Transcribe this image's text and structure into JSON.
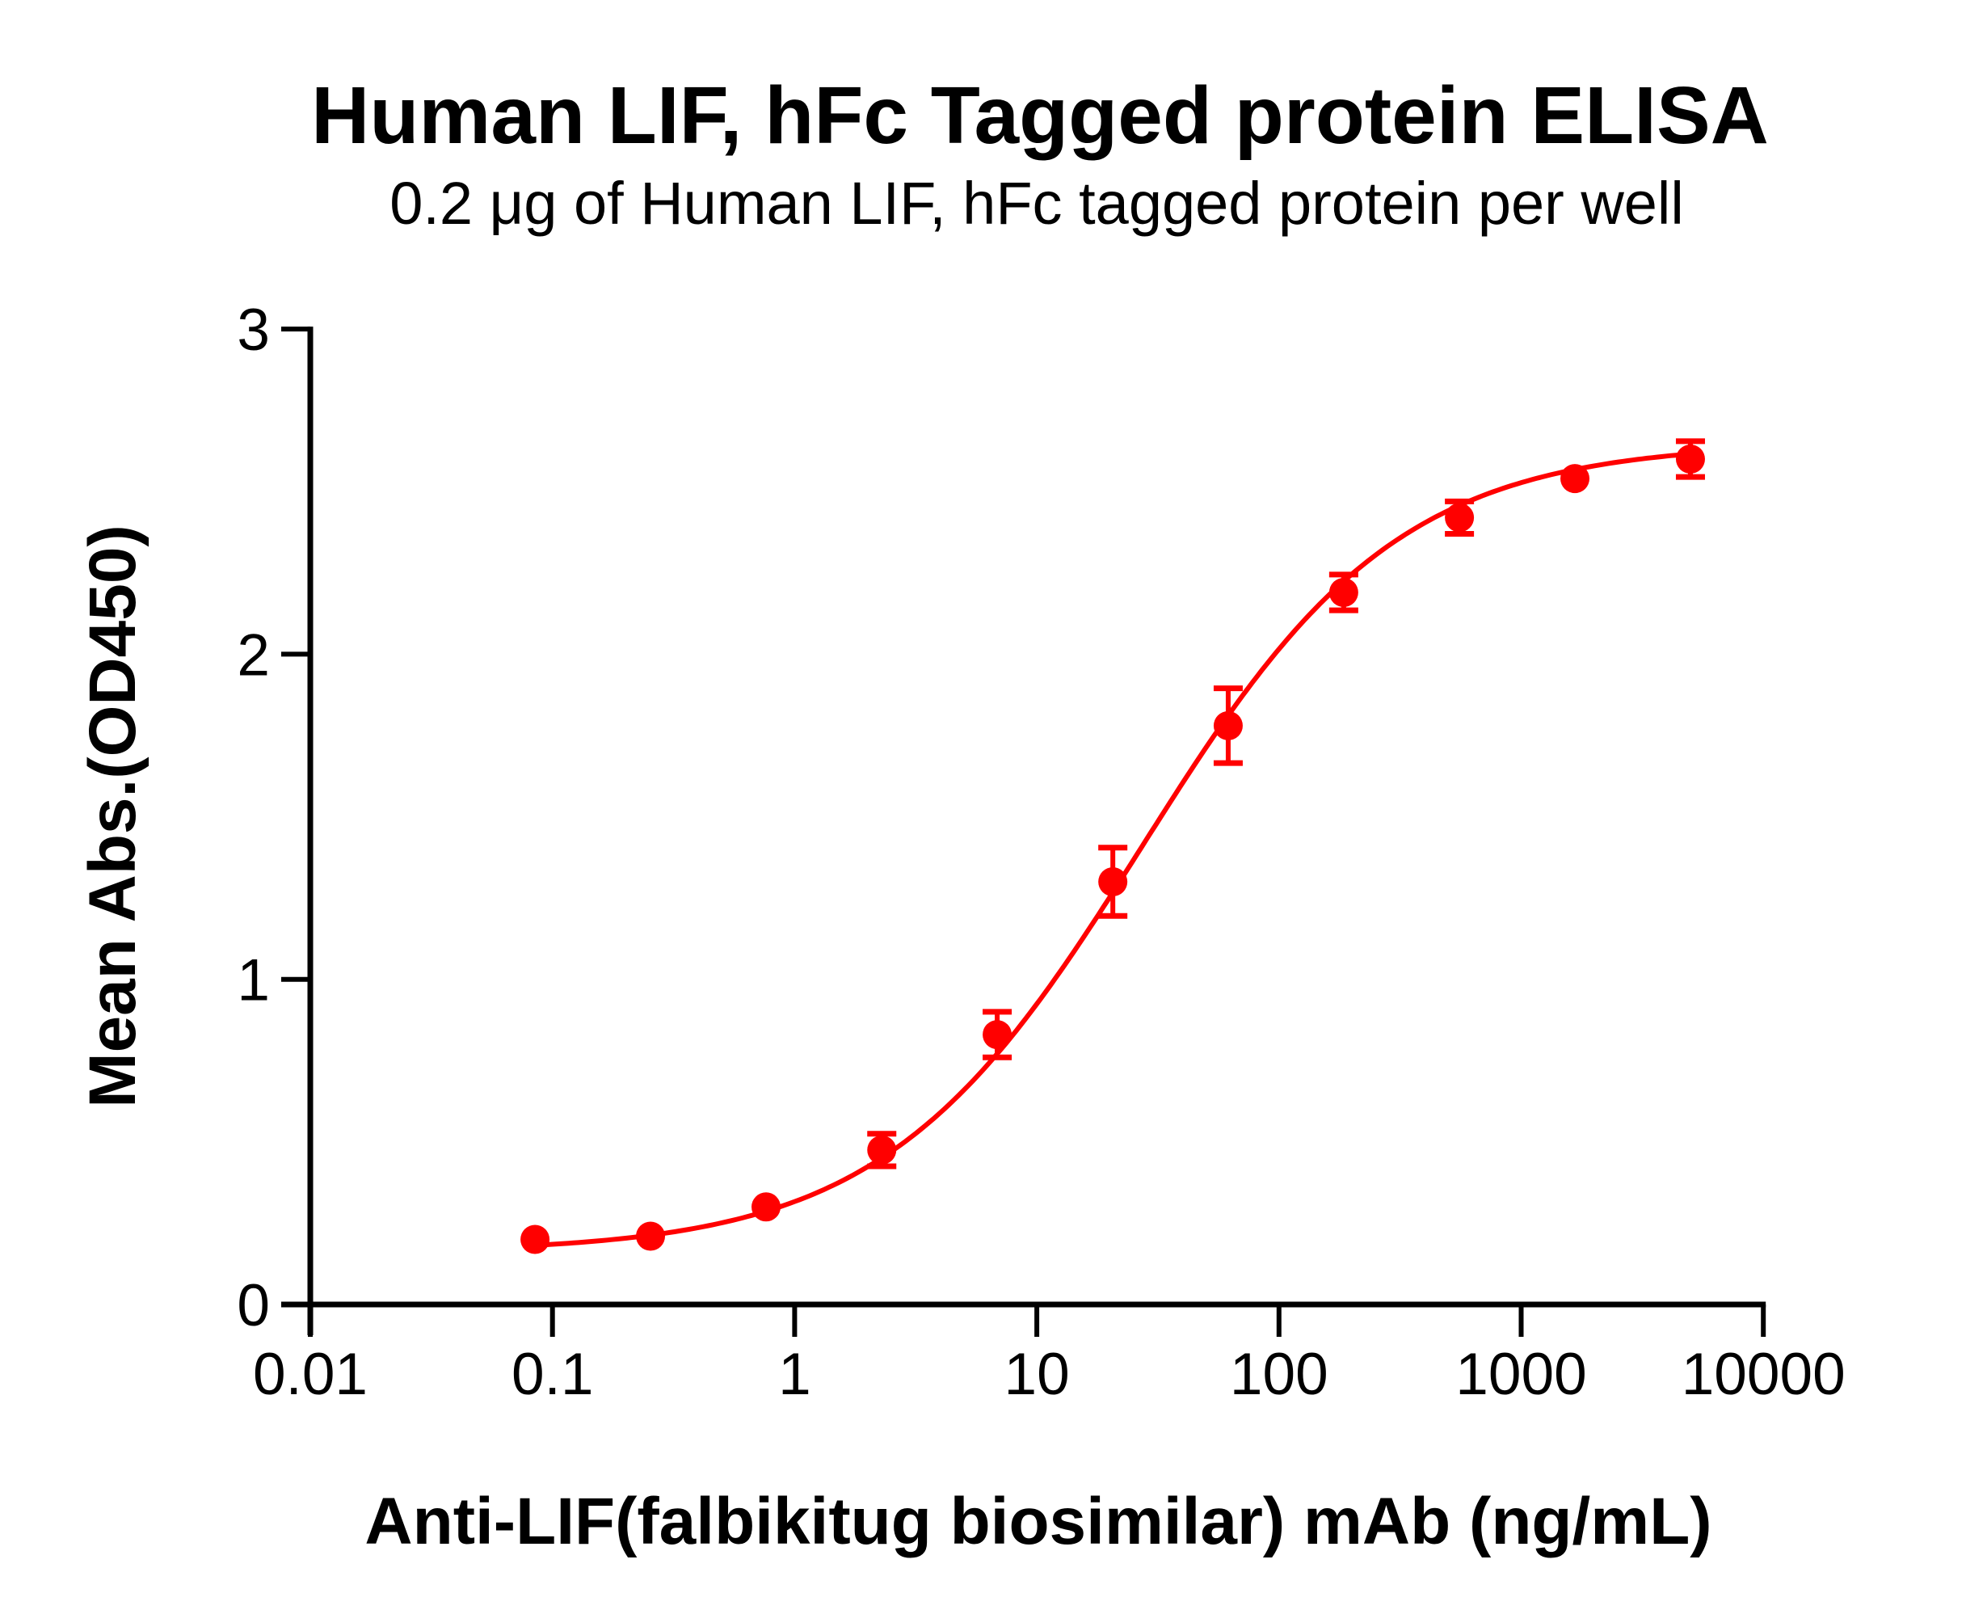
{
  "chart_title": "Human LIF, hFc Tagged protein ELISA",
  "chart_subtitle": "0.2 μg of Human LIF, hFc tagged protein per well",
  "axes": {
    "xlabel": "Anti-LIF(falbikitug biosimilar) mAb (ng/mL)",
    "ylabel": "Mean Abs.(OD450)"
  },
  "colors": {
    "series": "#ff0000",
    "axis": "#000000"
  },
  "chart_data": {
    "type": "scatter",
    "title": "Human LIF, hFc Tagged protein ELISA",
    "subtitle": "0.2 μg of Human LIF, hFc tagged protein per well",
    "xlabel": "Anti-LIF(falbikitug biosimilar) mAb (ng/mL)",
    "ylabel": "Mean Abs.(OD450)",
    "xscale": "log",
    "xlim": [
      0.01,
      10000
    ],
    "ylim": [
      0,
      3
    ],
    "x_ticks": [
      0.01,
      0.1,
      1,
      10,
      100,
      1000,
      10000
    ],
    "x_tick_labels": [
      "0.01",
      "0.1",
      "1",
      "10",
      "100",
      "1000",
      "10000"
    ],
    "y_ticks": [
      0,
      1,
      2,
      3
    ],
    "y_tick_labels": [
      "0",
      "1",
      "2",
      "3"
    ],
    "grid": false,
    "legend": null,
    "series": [
      {
        "name": "Anti-LIF(falbikitug biosimilar) mAb",
        "color": "#ff0000",
        "marker": "circle",
        "x": [
          0.0847,
          0.254,
          0.762,
          2.29,
          6.86,
          20.6,
          61.7,
          185,
          556,
          1667,
          5000
        ],
        "y": [
          0.2,
          0.21,
          0.3,
          0.475,
          0.83,
          1.3,
          1.78,
          2.19,
          2.42,
          2.54,
          2.6
        ],
        "error": [
          0.0,
          0.0,
          0.0,
          0.05,
          0.07,
          0.105,
          0.115,
          0.055,
          0.05,
          0.0,
          0.055
        ]
      }
    ],
    "fit": {
      "model": "4PL",
      "bottom": 0.16,
      "top": 2.65,
      "ec50": 27,
      "hill": 0.82,
      "x_range": [
        0.0847,
        5000
      ]
    }
  }
}
